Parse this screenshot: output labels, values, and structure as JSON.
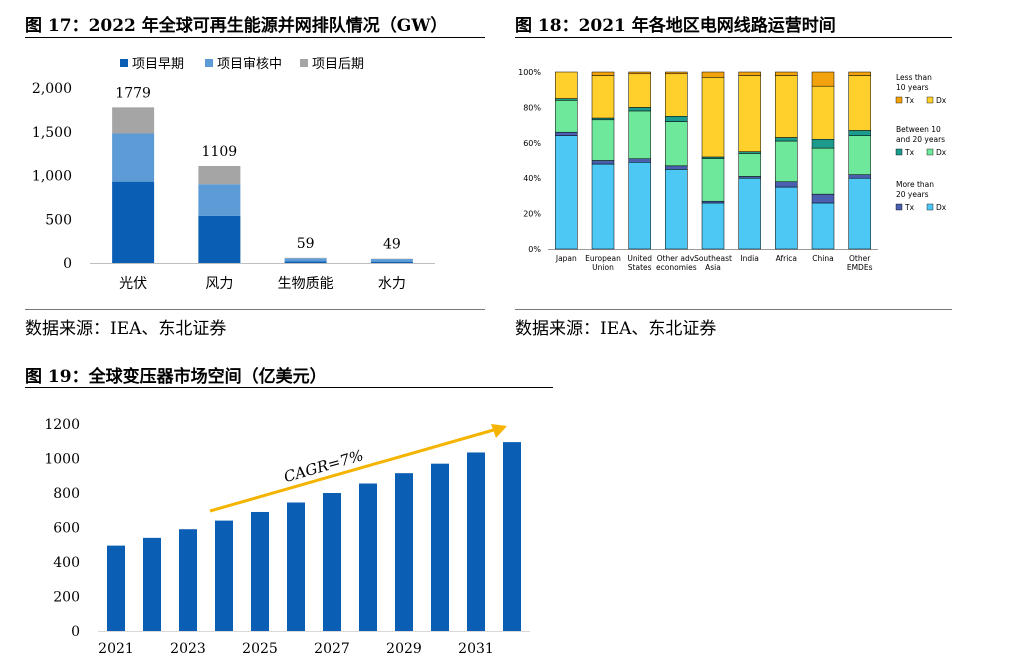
{
  "fig17": {
    "title": "图 17：2022 年全球可再生能源并网排队情况（GW）",
    "source": "数据来源：IEA、东北证券",
    "chart_data": {
      "type": "bar",
      "stacked": true,
      "title": "图 17：2022 年全球可再生能源并网排队情况（GW）",
      "categories": [
        "光伏",
        "风力",
        "生物质能",
        "水力"
      ],
      "series": [
        {
          "name": "项目早期",
          "color": "#0a5fb4",
          "values": [
            930,
            540,
            20,
            15
          ]
        },
        {
          "name": "项目审核中",
          "color": "#5c9bd6",
          "values": [
            550,
            360,
            34,
            30
          ]
        },
        {
          "name": "项目后期",
          "color": "#a5a5a5",
          "values": [
            299,
            209,
            5,
            4
          ]
        }
      ],
      "totals": [
        1779,
        1109,
        59,
        49
      ],
      "total_labels": [
        "1779",
        "1109",
        "59",
        "49"
      ],
      "yticks": [
        0,
        500,
        1000,
        1500,
        2000
      ],
      "ytick_labels": [
        "0",
        "500",
        "1,000",
        "1,500",
        "2,000"
      ],
      "ylim": [
        0,
        2000
      ],
      "legend_position": "top"
    }
  },
  "fig18": {
    "title": "图 18：2021 年各地区电网线路运营时间",
    "source": "数据来源：IEA、东北证券",
    "chart_data": {
      "type": "bar",
      "stacked": true,
      "percent": true,
      "title": "图 18：2021 年各地区电网线路运营时间",
      "categories": [
        [
          "Japan"
        ],
        [
          "European",
          "Union"
        ],
        [
          "United",
          "States"
        ],
        [
          "Other adv.",
          "economies"
        ],
        [
          "Southeast",
          "Asia"
        ],
        [
          "India"
        ],
        [
          "Africa"
        ],
        [
          "China"
        ],
        [
          "Other",
          "EMDEs"
        ]
      ],
      "series": [
        {
          "name": ">20 Dx",
          "color": "#4dc8f5",
          "values": [
            64,
            48,
            49,
            45,
            26,
            40,
            35,
            26,
            40
          ]
        },
        {
          "name": ">20 Tx",
          "color": "#4a5fb0",
          "values": [
            2,
            2,
            2,
            2,
            1,
            1,
            3,
            5,
            2
          ]
        },
        {
          "name": "10-20 Dx",
          "color": "#6ee89a",
          "values": [
            18,
            23,
            27,
            25,
            24,
            13,
            23,
            26,
            22
          ]
        },
        {
          "name": "10-20 Tx",
          "color": "#1c9a8c",
          "values": [
            1,
            1,
            2,
            3,
            1,
            1,
            2,
            5,
            3
          ]
        },
        {
          "name": "<10 Dx",
          "color": "#ffd02c",
          "values": [
            15,
            24,
            19,
            24,
            45,
            43,
            35,
            30,
            31
          ]
        },
        {
          "name": "<10 Tx",
          "color": "#f2a20c",
          "values": [
            0,
            2,
            1,
            1,
            3,
            2,
            2,
            8,
            2
          ]
        }
      ],
      "yticks": [
        0,
        20,
        40,
        60,
        80,
        100
      ],
      "ytick_labels": [
        "0%",
        "20%",
        "40%",
        "60%",
        "80%",
        "100%"
      ],
      "ylim": [
        0,
        100
      ],
      "legend_groups": [
        {
          "heading": [
            "Less than",
            "10 years"
          ],
          "tx_color": "#f2a20c",
          "dx_color": "#ffd02c"
        },
        {
          "heading": [
            "Between 10",
            "and 20 years"
          ],
          "tx_color": "#1c9a8c",
          "dx_color": "#6ee89a"
        },
        {
          "heading": [
            "More than",
            "20 years"
          ],
          "tx_color": "#4a5fb0",
          "dx_color": "#4dc8f5"
        }
      ],
      "tx_label": "Tx",
      "dx_label": "Dx"
    }
  },
  "fig19": {
    "title": "图 19：全球变压器市场空间（亿美元）",
    "chart_data": {
      "type": "bar",
      "title": "图 19：全球变压器市场空间（亿美元）",
      "x": [
        2021,
        2022,
        2023,
        2024,
        2025,
        2026,
        2027,
        2028,
        2029,
        2030,
        2031,
        2032
      ],
      "values": [
        495,
        540,
        590,
        640,
        690,
        745,
        800,
        855,
        915,
        970,
        1035,
        1095
      ],
      "xtick_labels": [
        "2021",
        "2023",
        "2025",
        "2027",
        "2029",
        "2031"
      ],
      "yticks": [
        0,
        200,
        400,
        600,
        800,
        1000,
        1200
      ],
      "ytick_labels": [
        "0",
        "200",
        "400",
        "600",
        "800",
        "1000",
        "1200"
      ],
      "ylim": [
        0,
        1200
      ],
      "bar_color": "#0a5fb4",
      "annotation": "CAGR=7%",
      "arrow_color": "#f5b400"
    }
  }
}
